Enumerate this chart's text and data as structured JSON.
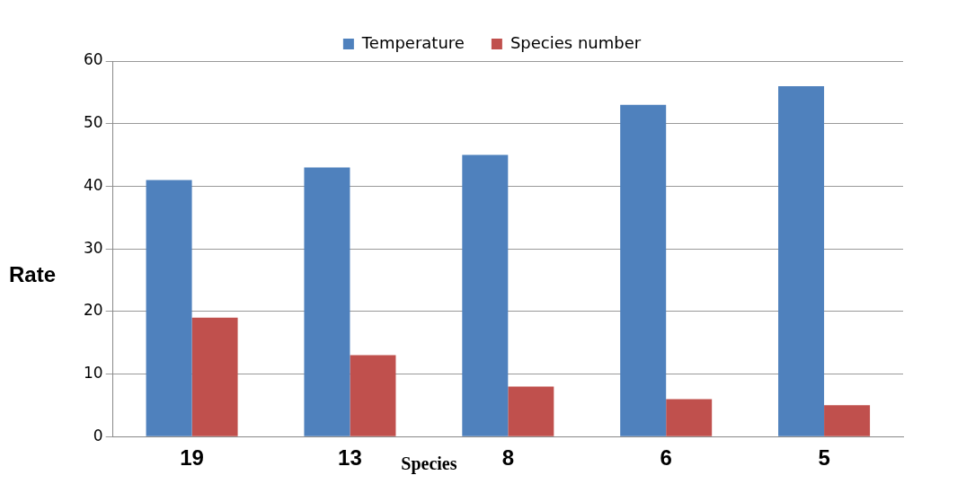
{
  "chart_data": {
    "type": "bar",
    "xlabel": "Species",
    "ylabel": "Rate",
    "categories": [
      "19",
      "13",
      "8",
      "6",
      "5"
    ],
    "series": [
      {
        "name": "Temperature",
        "color": "#4f81bd",
        "values": [
          41,
          43,
          45,
          53,
          56
        ]
      },
      {
        "name": "Species number",
        "color": "#c0504d",
        "values": [
          19,
          13,
          8,
          6,
          5
        ]
      }
    ],
    "ylim": [
      0,
      60
    ],
    "yticks": [
      0,
      10,
      20,
      30,
      40,
      50,
      60
    ],
    "grid": "y",
    "legend": "top"
  }
}
